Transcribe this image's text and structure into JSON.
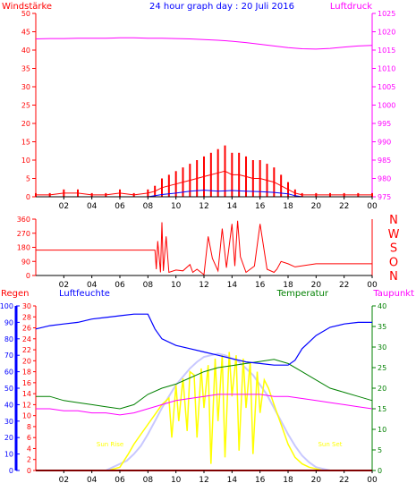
{
  "page_title": "24 hour graph day : 20 Juli 2016",
  "colors": {
    "wind": "#ff0000",
    "wind_gust": "#0000ff",
    "pressure": "#ff00ff",
    "direction": "#ff0000",
    "rain": "#ff0000",
    "humidity": "#0000ff",
    "temperature": "#008000",
    "dewpoint": "#ff00ff",
    "solar": "#ffff00",
    "solar_theory": "#c8c8ff",
    "sun_label": "#ffff00",
    "axis": "#000000"
  },
  "x_ticks": [
    "02",
    "04",
    "06",
    "08",
    "10",
    "12",
    "14",
    "16",
    "18",
    "20",
    "22",
    "00"
  ],
  "chart_data": [
    {
      "type": "line",
      "panel": "wind-pressure",
      "title": "24 hour graph day : 20 Juli 2016",
      "left_axis_label": "Windstärke",
      "right_axis_label": "Luftdruck",
      "left_ticks": [
        "50",
        "45",
        "40",
        "35",
        "30",
        "25",
        "20",
        "15",
        "10",
        "5",
        "0"
      ],
      "right_ticks": [
        "1025",
        "1020",
        "1015",
        "1010",
        "1005",
        "1000",
        "995",
        "990",
        "985",
        "980",
        "975"
      ],
      "ylim_left": [
        0,
        50
      ],
      "ylim_right": [
        973,
        1027
      ],
      "xlim": [
        0,
        24
      ],
      "series": [
        {
          "axis": "right",
          "x": [
            0,
            1,
            2,
            3,
            4,
            5,
            6,
            7,
            8,
            9,
            10,
            11,
            12,
            13,
            14,
            15,
            16,
            17,
            18,
            19,
            20,
            21,
            22,
            23,
            24
          ],
          "values": [
            1019.5,
            1019.6,
            1019.6,
            1019.7,
            1019.7,
            1019.7,
            1019.8,
            1019.8,
            1019.7,
            1019.7,
            1019.6,
            1019.5,
            1019.3,
            1019.1,
            1018.8,
            1018.4,
            1017.9,
            1017.4,
            1016.9,
            1016.6,
            1016.5,
            1016.7,
            1017.1,
            1017.4,
            1017.6
          ]
        },
        {
          "axis": "left",
          "x": [
            0,
            1,
            2,
            3,
            4,
            5,
            6,
            7,
            8,
            8.5,
            9,
            9.5,
            10,
            10.5,
            11,
            11.5,
            12,
            12.5,
            13,
            13.5,
            14,
            14.5,
            15,
            15.5,
            16,
            16.5,
            17,
            17.5,
            18,
            18.5,
            19,
            20,
            21,
            22,
            23,
            24
          ],
          "values": [
            1,
            1,
            2,
            2,
            1,
            1,
            2,
            1,
            2,
            3,
            5,
            6,
            7,
            8,
            9,
            10,
            11,
            12,
            13,
            14,
            12,
            12,
            11,
            10,
            10,
            9,
            8,
            6,
            4,
            2,
            1,
            1,
            1,
            1,
            1,
            1
          ]
        },
        {
          "axis": "left",
          "x": [
            0,
            8,
            8.5,
            9,
            10,
            11,
            12,
            13,
            14,
            15,
            16,
            17,
            18,
            18.5,
            19,
            24
          ],
          "values": [
            0,
            0,
            0.3,
            0.6,
            1.0,
            1.5,
            1.8,
            1.5,
            1.7,
            1.5,
            1.4,
            1.2,
            0.8,
            0.3,
            0,
            0
          ]
        }
      ]
    },
    {
      "type": "line",
      "panel": "wind-direction",
      "left_ticks": [
        "360",
        "270",
        "180",
        "90",
        "0"
      ],
      "right_ticks": [
        "N",
        "W",
        "S",
        "O",
        "N"
      ],
      "ylim": [
        0,
        360
      ],
      "xlim": [
        0,
        24
      ],
      "series": [
        {
          "x": [
            0,
            3,
            6,
            8,
            8.5,
            8.6,
            8.7,
            8.9,
            9.0,
            9.1,
            9.3,
            9.5,
            10,
            10.5,
            11,
            11.2,
            11.5,
            12,
            12.3,
            12.6,
            13,
            13.3,
            13.6,
            14,
            14.2,
            14.4,
            14.6,
            15,
            15.3,
            15.6,
            16,
            16.5,
            17,
            17.2,
            17.5,
            18,
            18.5,
            20,
            22,
            24
          ],
          "values": [
            162,
            162,
            162,
            162,
            162,
            40,
            220,
            20,
            340,
            30,
            250,
            20,
            35,
            30,
            70,
            20,
            40,
            5,
            250,
            110,
            30,
            300,
            50,
            330,
            60,
            350,
            120,
            20,
            40,
            60,
            330,
            40,
            20,
            40,
            90,
            75,
            55,
            75,
            75,
            75
          ]
        }
      ]
    },
    {
      "type": "line",
      "panel": "rain-humidity-temperature",
      "labels": [
        "Regen",
        "Luftfeuchte",
        "Temperatur",
        "Taupunkt"
      ],
      "sun_rise_label": "Sun Rise",
      "sun_set_label": "Sun Set",
      "sun_rise_hour": 5.3,
      "sun_set_hour": 21.0,
      "rain_ticks": [
        "30",
        "28",
        "26",
        "24",
        "22",
        "20",
        "18",
        "16",
        "14",
        "12",
        "10",
        "8",
        "6",
        "4",
        "2",
        "0"
      ],
      "humidity_ticks": [
        "100",
        "90",
        "80",
        "70",
        "60",
        "50",
        "40",
        "30",
        "20",
        "10",
        "0"
      ],
      "temp_ticks": [
        "40",
        "35",
        "30",
        "25",
        "20",
        "15",
        "10",
        "5",
        "0"
      ],
      "ylim_rain": [
        0,
        30
      ],
      "ylim_humidity": [
        0,
        100
      ],
      "ylim_temp": [
        0,
        40
      ],
      "xlim": [
        0,
        24
      ],
      "series": [
        {
          "axis": "humidity",
          "x": [
            0,
            1,
            2,
            3,
            4,
            5,
            6,
            7,
            8,
            8.5,
            9,
            10,
            11,
            12,
            13,
            14,
            15,
            16,
            17,
            18,
            18.5,
            19,
            20,
            21,
            22,
            23,
            24
          ],
          "values": [
            86,
            88,
            89,
            90,
            92,
            93,
            94,
            95,
            95,
            86,
            80,
            76,
            74,
            72,
            70,
            68,
            66,
            65,
            64,
            64,
            67,
            74,
            82,
            87,
            89,
            90,
            90
          ]
        },
        {
          "axis": "temp",
          "x": [
            0,
            1,
            2,
            3,
            4,
            5,
            6,
            7,
            8,
            9,
            10,
            11,
            12,
            13,
            14,
            15,
            16,
            17,
            18,
            19,
            20,
            21,
            22,
            23,
            24
          ],
          "values": [
            18,
            18,
            17,
            16.5,
            16,
            15.5,
            15,
            16,
            18.5,
            20,
            21,
            22.5,
            24,
            25,
            25.5,
            26,
            26.5,
            27,
            26,
            24,
            22,
            20,
            19,
            18,
            17
          ]
        },
        {
          "axis": "temp",
          "x": [
            0,
            1,
            2,
            3,
            4,
            5,
            6,
            7,
            8,
            9,
            10,
            11,
            12,
            13,
            14,
            15,
            16,
            17,
            18,
            19,
            20,
            21,
            22,
            23,
            24
          ],
          "values": [
            15,
            15,
            14.5,
            14.5,
            14,
            14,
            13.5,
            14,
            15,
            16,
            17,
            17.5,
            18,
            18.5,
            18.5,
            18.5,
            18.5,
            18,
            18,
            17.5,
            17,
            16.5,
            16,
            15.5,
            15
          ]
        },
        {
          "axis": "rain",
          "x": [
            0,
            24
          ],
          "values": [
            0,
            0
          ]
        },
        {
          "axis": "humidity",
          "x": [
            0,
            5,
            5.5,
            6,
            6.5,
            7,
            7.5,
            8,
            8.5,
            9,
            9.5,
            10,
            10.5,
            11,
            11.5,
            12,
            12.5,
            13,
            13.5,
            14,
            14.5,
            15,
            15.5,
            16,
            16.5,
            17,
            17.5,
            18,
            18.5,
            19,
            19.5,
            20,
            20.5,
            21,
            24
          ],
          "values": [
            0,
            0,
            2,
            4,
            6,
            10,
            15,
            22,
            30,
            38,
            45,
            52,
            57,
            62,
            66,
            69,
            70,
            71,
            70,
            68,
            66,
            62,
            58,
            52,
            46,
            38,
            30,
            22,
            15,
            9,
            5,
            2,
            1,
            0,
            0
          ]
        },
        {
          "axis": "humidity",
          "x": [
            0,
            5.2,
            6,
            6.6,
            7,
            7.5,
            8,
            8.5,
            9,
            9.5,
            9.7,
            10,
            10.2,
            10.5,
            10.8,
            11,
            11.3,
            11.5,
            11.8,
            12,
            12.3,
            12.5,
            12.8,
            13,
            13.3,
            13.5,
            13.8,
            14,
            14.3,
            14.5,
            14.8,
            15,
            15.3,
            15.5,
            15.8,
            16,
            16.3,
            16.6,
            17,
            17.5,
            18,
            18.5,
            19,
            19.5,
            20,
            20.5,
            21,
            24
          ],
          "values": [
            0,
            0,
            2,
            10,
            16,
            22,
            28,
            34,
            40,
            44,
            20,
            52,
            30,
            56,
            24,
            60,
            58,
            20,
            62,
            38,
            64,
            4,
            68,
            30,
            70,
            8,
            72,
            45,
            70,
            12,
            68,
            38,
            66,
            10,
            60,
            35,
            55,
            50,
            40,
            28,
            16,
            8,
            4,
            2,
            1,
            0,
            0,
            0
          ]
        }
      ]
    }
  ]
}
